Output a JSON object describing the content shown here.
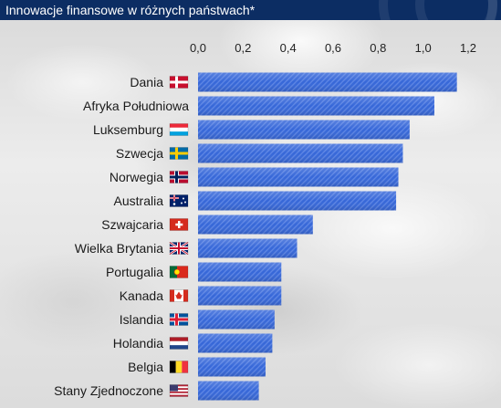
{
  "header": {
    "title": "Innowacje finansowe w różnych państwach*"
  },
  "colors": {
    "header_bg": "#0c2d63",
    "bar": "#3667d8",
    "bar_stripe": "#4c7ae0",
    "text": "#1a1a1a"
  },
  "chart_data": {
    "type": "bar",
    "orientation": "horizontal",
    "title": "Innowacje finansowe w różnych państwach*",
    "xlabel": "",
    "ylabel": "",
    "xlim": [
      0,
      1.2
    ],
    "x_ticks": [
      "0,0",
      "0,2",
      "0,4",
      "0,6",
      "0,8",
      "1,0",
      "1,2"
    ],
    "x_tick_values": [
      0,
      0.2,
      0.4,
      0.6,
      0.8,
      1.0,
      1.2
    ],
    "grid": false,
    "categories": [
      "Dania",
      "Afryka Południowa",
      "Luksemburg",
      "Szwecja",
      "Norwegia",
      "Australia",
      "Szwajcaria",
      "Wielka Brytania",
      "Portugalia",
      "Kanada",
      "Islandia",
      "Holandia",
      "Belgia",
      "Stany Zjednoczone"
    ],
    "flags": [
      "denmark-flag-icon",
      "",
      "luxembourg-flag-icon",
      "sweden-flag-icon",
      "norway-flag-icon",
      "australia-flag-icon",
      "switzerland-flag-icon",
      "uk-flag-icon",
      "portugal-flag-icon",
      "canada-flag-icon",
      "iceland-flag-icon",
      "netherlands-flag-icon",
      "belgium-flag-icon",
      "usa-flag-icon"
    ],
    "values": [
      1.15,
      1.05,
      0.94,
      0.91,
      0.89,
      0.88,
      0.51,
      0.44,
      0.37,
      0.37,
      0.34,
      0.33,
      0.3,
      0.27
    ]
  }
}
